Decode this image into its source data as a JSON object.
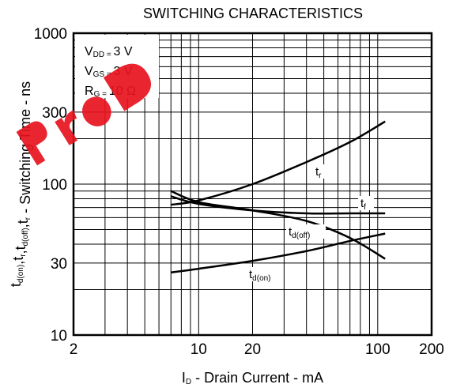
{
  "chart_data": {
    "type": "line",
    "title": "SWITCHING CHARACTERISTICS",
    "xlabel": {
      "main": "I",
      "sub": "D",
      "rest": " - Drain Current - mA"
    },
    "ylabel": {
      "parts": [
        {
          "t": "t",
          "s": "d(on)"
        },
        {
          "t": ",t",
          "s": "r"
        },
        {
          "t": ",t",
          "s": "d(off)"
        },
        {
          "t": ",t",
          "s": "r"
        },
        {
          "t": " - Switching Time - ns",
          "s": ""
        }
      ]
    },
    "x_scale": "log",
    "y_scale": "log",
    "xlim": [
      2,
      200
    ],
    "ylim": [
      10,
      1000
    ],
    "x_ticks": [
      2,
      10,
      20,
      100,
      200
    ],
    "x_tick_labels": [
      "2",
      "10",
      "20",
      "100",
      "200"
    ],
    "y_ticks": [
      10,
      30,
      100,
      300,
      1000
    ],
    "y_tick_labels": [
      "10",
      "30",
      "100",
      "300",
      "1000"
    ],
    "grid": true,
    "conditions": [
      {
        "main": "V",
        "sub": "DD = ",
        "value": "3 V"
      },
      {
        "main": "V",
        "sub": "GS = ",
        "value": "3 V"
      },
      {
        "main": "R",
        "sub": "G = ",
        "value": "10 Ω"
      }
    ],
    "series": [
      {
        "name": "tr",
        "label_main": "t",
        "label_sub": "r",
        "x": [
          7,
          10,
          20,
          40,
          70,
          110
        ],
        "y": [
          73,
          78,
          100,
          140,
          190,
          260
        ]
      },
      {
        "name": "tf",
        "label_main": "t",
        "label_sub": "f",
        "x": [
          7,
          10,
          20,
          40,
          70,
          110
        ],
        "y": [
          83,
          74,
          67,
          64,
          64,
          64
        ]
      },
      {
        "name": "td(off)",
        "label_main": "t",
        "label_sub": "d(off)",
        "x": [
          7,
          10,
          20,
          40,
          70,
          110
        ],
        "y": [
          90,
          76,
          67,
          57,
          44,
          32
        ]
      },
      {
        "name": "td(on)",
        "label_main": "t",
        "label_sub": "d(on)",
        "x": [
          7,
          10,
          20,
          40,
          70,
          110
        ],
        "y": [
          26,
          27.5,
          31,
          36,
          42,
          47
        ]
      }
    ]
  }
}
